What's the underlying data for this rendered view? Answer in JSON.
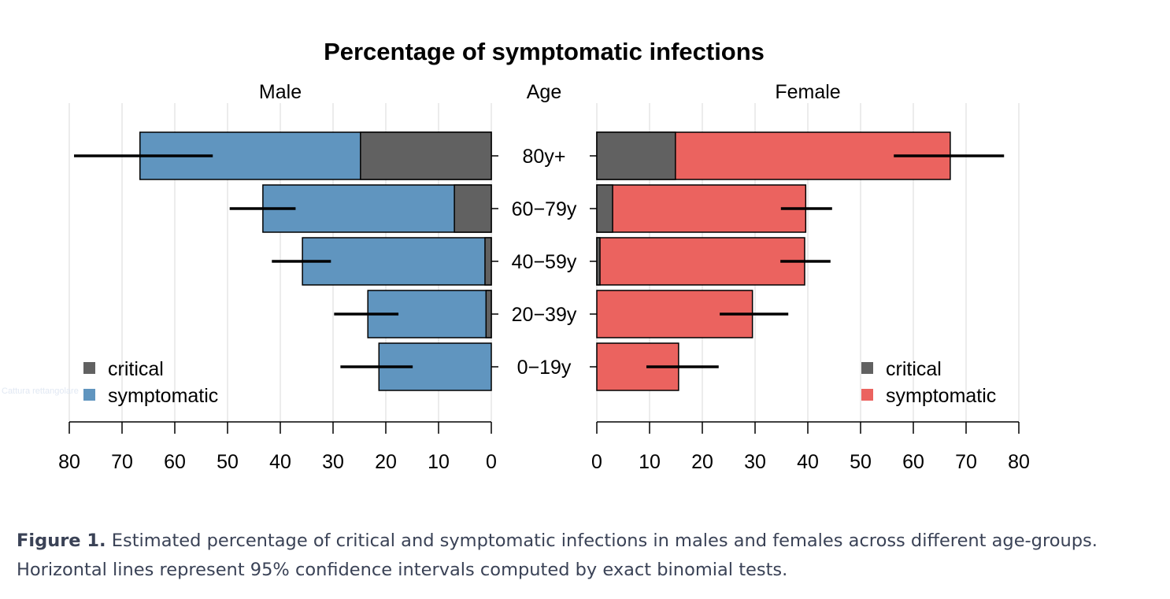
{
  "figure": {
    "caption_label": "Figure 1.",
    "caption_text": " Estimated percentage of critical and symptomatic infections in males and females across different age-groups. Horizontal lines represent 95% confidence intervals computed by exact binomial tests.",
    "watermark": "Cattura rettangolare"
  },
  "chart_data": {
    "type": "bar",
    "orientation": "horizontal-population-pyramid",
    "title": "Percentage of symptomatic infections",
    "center_axis_label": "Age",
    "categories": [
      "80y+",
      "60−79y",
      "40−59y",
      "20−39y",
      "0−19y"
    ],
    "xlim": [
      0,
      80
    ],
    "xticks": [
      0,
      10,
      20,
      30,
      40,
      50,
      60,
      70,
      80
    ],
    "grid": true,
    "colors": {
      "critical": "#616161",
      "symptomatic_male": "#6095BF",
      "symptomatic_female": "#EB635F"
    },
    "panels": [
      {
        "name": "Male",
        "direction": "left",
        "legend": {
          "position": "bottom-left",
          "entries": [
            "critical",
            "symptomatic"
          ]
        },
        "series": [
          {
            "name": "symptomatic",
            "values": [
              66.6,
              43.3,
              35.8,
              23.4,
              21.3
            ]
          },
          {
            "name": "critical",
            "values": [
              24.8,
              7,
              1.2,
              1,
              0
            ]
          }
        ],
        "ci": [
          [
            52.8,
            79.1
          ],
          [
            37.1,
            49.6
          ],
          [
            30.4,
            41.6
          ],
          [
            17.6,
            29.8
          ],
          [
            14.9,
            28.6
          ]
        ]
      },
      {
        "name": "Female",
        "direction": "right",
        "legend": {
          "position": "bottom-right",
          "entries": [
            "critical",
            "symptomatic"
          ]
        },
        "series": [
          {
            "name": "symptomatic",
            "values": [
              67,
              39.6,
              39.4,
              29.5,
              15.5
            ]
          },
          {
            "name": "critical",
            "values": [
              14.9,
              3,
              0.6,
              0,
              0
            ]
          }
        ],
        "ci": [
          [
            56.3,
            77.2
          ],
          [
            34.9,
            44.6
          ],
          [
            34.8,
            44.3
          ],
          [
            23.3,
            36.3
          ],
          [
            9.4,
            23.1
          ]
        ]
      }
    ]
  }
}
